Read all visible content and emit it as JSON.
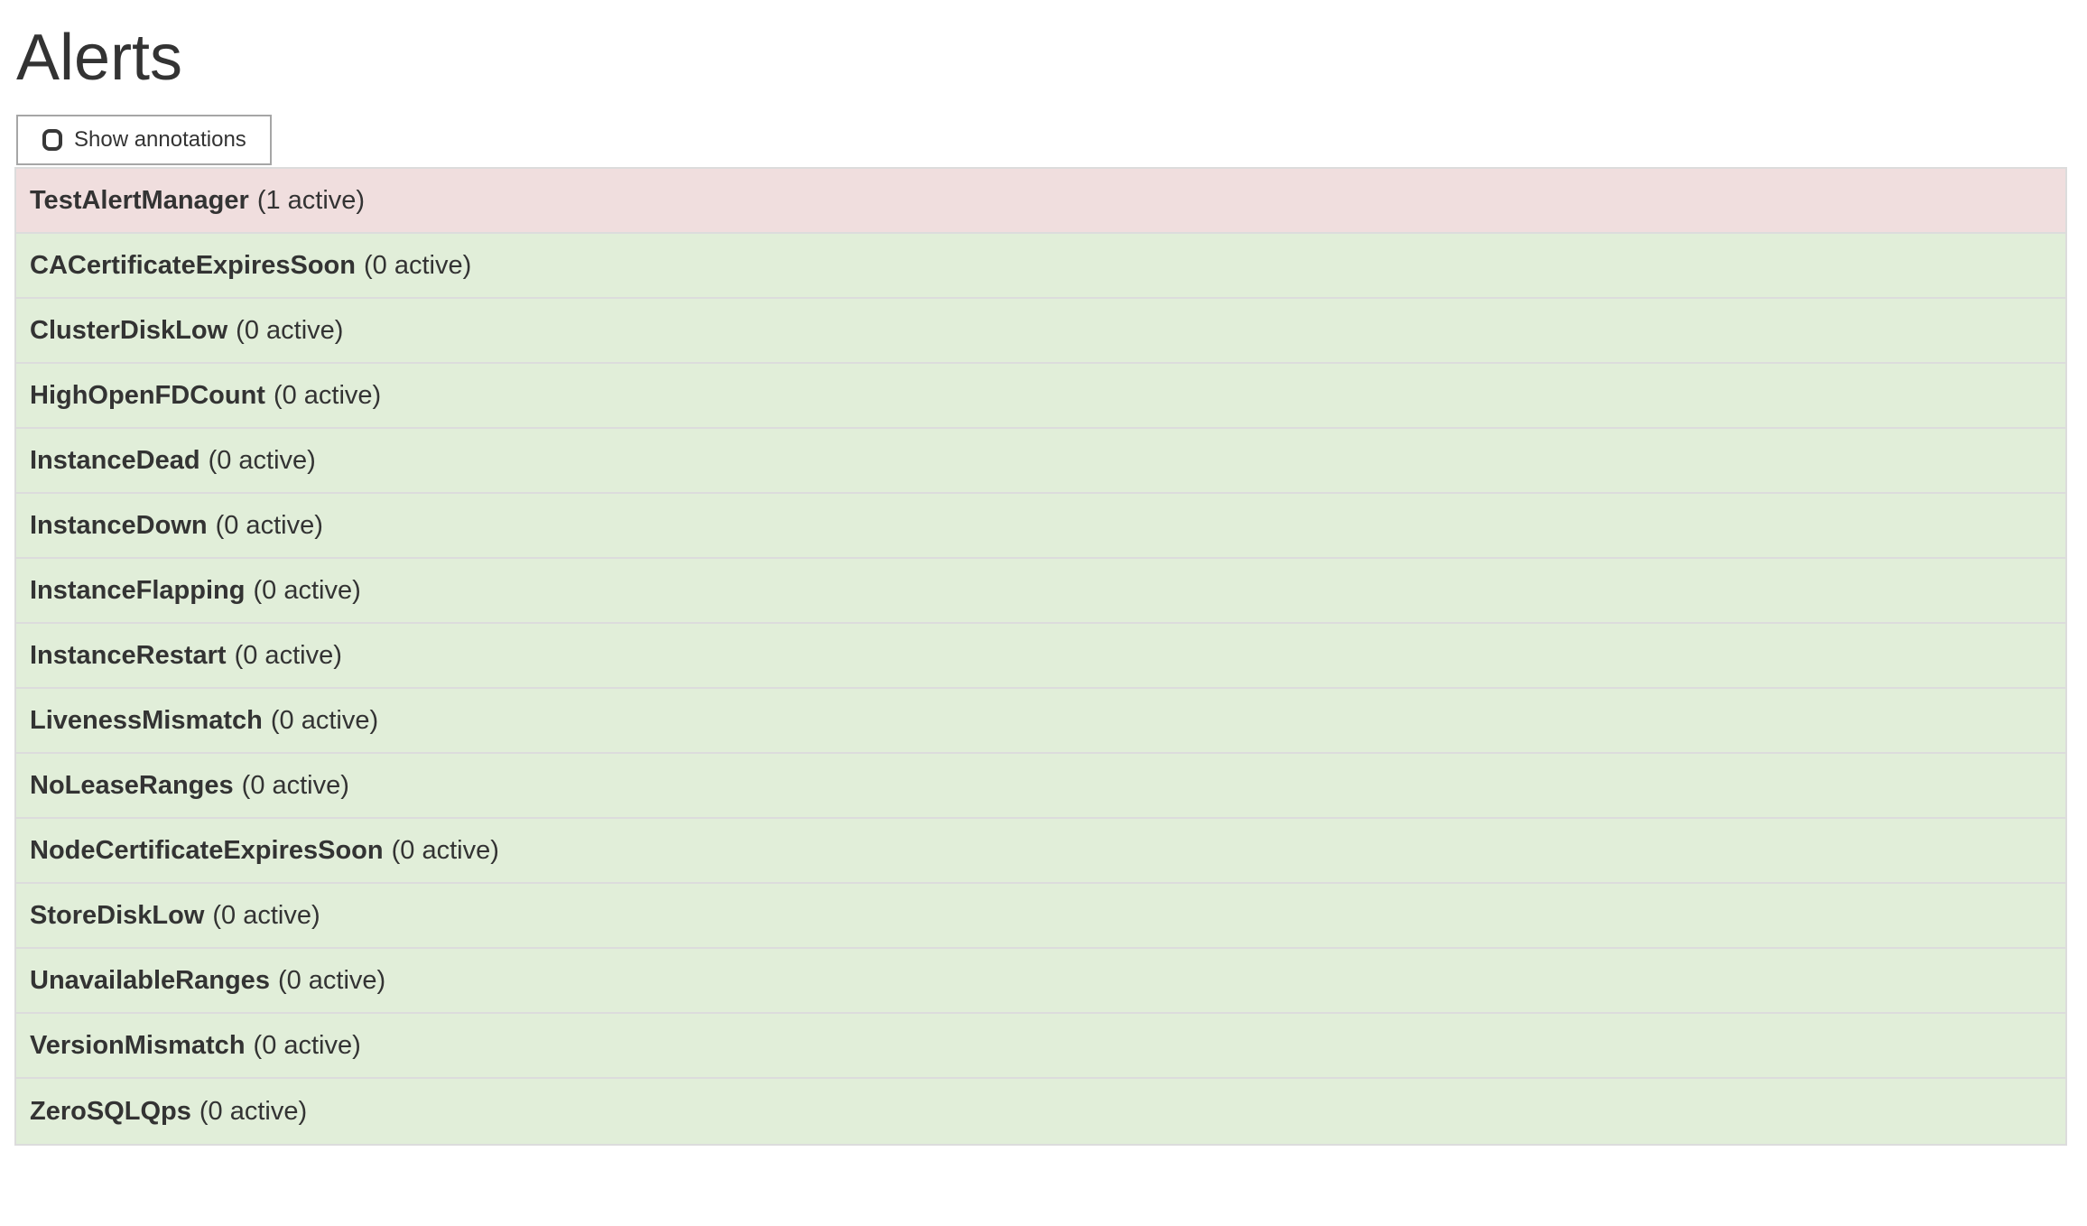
{
  "page": {
    "title": "Alerts"
  },
  "toolbar": {
    "show_annotations_label": "Show annotations",
    "checkbox_checked": false
  },
  "alerts": [
    {
      "name": "TestAlertManager",
      "active": 1,
      "count_label": "(1 active)",
      "state": "firing"
    },
    {
      "name": "CACertificateExpiresSoon",
      "active": 0,
      "count_label": "(0 active)",
      "state": "inactive"
    },
    {
      "name": "ClusterDiskLow",
      "active": 0,
      "count_label": "(0 active)",
      "state": "inactive"
    },
    {
      "name": "HighOpenFDCount",
      "active": 0,
      "count_label": "(0 active)",
      "state": "inactive"
    },
    {
      "name": "InstanceDead",
      "active": 0,
      "count_label": "(0 active)",
      "state": "inactive"
    },
    {
      "name": "InstanceDown",
      "active": 0,
      "count_label": "(0 active)",
      "state": "inactive"
    },
    {
      "name": "InstanceFlapping",
      "active": 0,
      "count_label": "(0 active)",
      "state": "inactive"
    },
    {
      "name": "InstanceRestart",
      "active": 0,
      "count_label": "(0 active)",
      "state": "inactive"
    },
    {
      "name": "LivenessMismatch",
      "active": 0,
      "count_label": "(0 active)",
      "state": "inactive"
    },
    {
      "name": "NoLeaseRanges",
      "active": 0,
      "count_label": "(0 active)",
      "state": "inactive"
    },
    {
      "name": "NodeCertificateExpiresSoon",
      "active": 0,
      "count_label": "(0 active)",
      "state": "inactive"
    },
    {
      "name": "StoreDiskLow",
      "active": 0,
      "count_label": "(0 active)",
      "state": "inactive"
    },
    {
      "name": "UnavailableRanges",
      "active": 0,
      "count_label": "(0 active)",
      "state": "inactive"
    },
    {
      "name": "VersionMismatch",
      "active": 0,
      "count_label": "(0 active)",
      "state": "inactive"
    },
    {
      "name": "ZeroSQLQps",
      "active": 0,
      "count_label": "(0 active)",
      "state": "inactive"
    }
  ],
  "colors": {
    "firing_bg": "#f0dede",
    "inactive_bg": "#e1eed9",
    "row_border": "#dcdcdc",
    "text": "#333333",
    "button_border": "#a6a6a6"
  }
}
